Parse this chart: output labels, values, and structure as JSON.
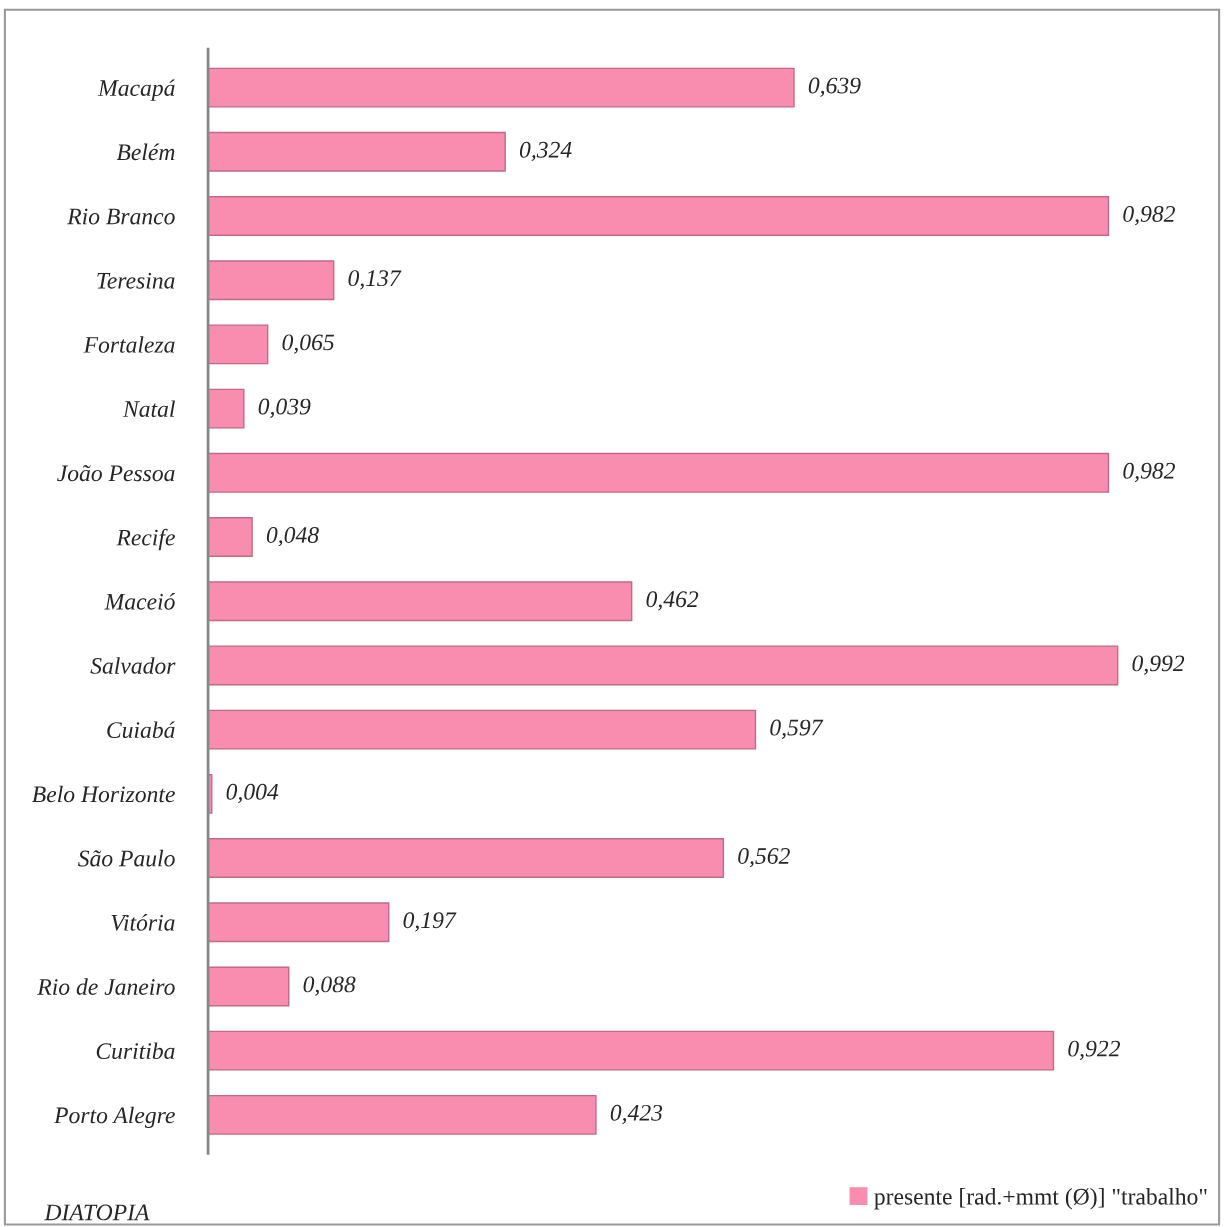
{
  "chart_data": {
    "type": "bar",
    "orientation": "horizontal",
    "categories": [
      "Macapá",
      "Belém",
      "Rio Branco",
      "Teresina",
      "Fortaleza",
      "Natal",
      "João Pessoa",
      "Recife",
      "Maceió",
      "Salvador",
      "Cuiabá",
      "Belo Horizonte",
      "São Paulo",
      "Vitória",
      "Rio de Janeiro",
      "Curitiba",
      "Porto Alegre"
    ],
    "series": [
      {
        "name": "presente [rad.+mmt (Ø)] \"trabalho\"",
        "color": "#f98daf",
        "values": [
          0.639,
          0.324,
          0.982,
          0.137,
          0.065,
          0.039,
          0.982,
          0.048,
          0.462,
          0.992,
          0.597,
          0.004,
          0.562,
          0.197,
          0.088,
          0.922,
          0.423
        ],
        "value_labels": [
          "0,639",
          "0,324",
          "0,982",
          "0,137",
          "0,065",
          "0,039",
          "0,982",
          "0,048",
          "0,462",
          "0,992",
          "0,597",
          "0,004",
          "0,562",
          "0,197",
          "0,088",
          "0,922",
          "0,423"
        ]
      }
    ],
    "ylabel": "DIATOPIA",
    "tick_labels": "y",
    "grid": false,
    "legend": "bottom right"
  }
}
